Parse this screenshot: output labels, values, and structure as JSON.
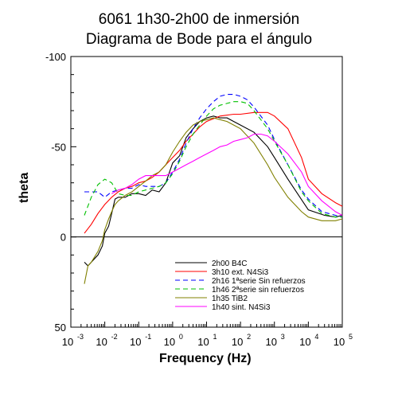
{
  "chart_data": {
    "type": "line",
    "title_lines": [
      "6061 1h30-2h00 de inmersión",
      "Diagrama de Bode para el ángulo"
    ],
    "xlabel": "Frequency (Hz)",
    "ylabel": "theta",
    "x_scale": "log",
    "xlim": [
      0.001,
      100000
    ],
    "ylim": [
      50,
      -100
    ],
    "y_inverted": true,
    "y_ticks": [
      -100,
      -50,
      0,
      50
    ],
    "x_ticks": [
      {
        "base": "10",
        "exp": "-3",
        "value": 0.001
      },
      {
        "base": "10",
        "exp": "-2",
        "value": 0.01
      },
      {
        "base": "10",
        "exp": "-1",
        "value": 0.1
      },
      {
        "base": "10",
        "exp": "0",
        "value": 1
      },
      {
        "base": "10",
        "exp": "1",
        "value": 10
      },
      {
        "base": "10",
        "exp": "2",
        "value": 100
      },
      {
        "base": "10",
        "exp": "3",
        "value": 1000
      },
      {
        "base": "10",
        "exp": "4",
        "value": 10000
      },
      {
        "base": "10",
        "exp": "5",
        "value": 100000
      }
    ],
    "zero_line": true,
    "grid": false,
    "legend_position": "bottom-right",
    "series": [
      {
        "name": "2h00 B4C",
        "color": "#000000",
        "dash": "solid",
        "x": [
          0.0025,
          0.0032,
          0.004,
          0.0063,
          0.0085,
          0.01,
          0.013,
          0.016,
          0.02,
          0.025,
          0.04,
          0.063,
          0.1,
          0.16,
          0.25,
          0.4,
          0.63,
          1,
          1.6,
          2.5,
          4,
          6.3,
          10,
          16,
          25,
          40,
          63,
          100,
          250,
          630,
          1000,
          2500,
          10000,
          30000,
          63000,
          100000
        ],
        "y": [
          14,
          16,
          14,
          10,
          5,
          -2,
          -6,
          -13,
          -21,
          -22,
          -22,
          -24,
          -24,
          -23,
          -26,
          -25,
          -30,
          -41,
          -45,
          -55,
          -60,
          -64,
          -66,
          -67,
          -66,
          -66,
          -64,
          -62,
          -58,
          -50,
          -44,
          -32,
          -15,
          -12,
          -11,
          -12
        ]
      },
      {
        "name": "3h10 ext. N4Si3",
        "color": "#ff0000",
        "dash": "solid",
        "x": [
          0.0025,
          0.004,
          0.0063,
          0.01,
          0.016,
          0.025,
          0.04,
          0.063,
          0.1,
          0.16,
          0.25,
          0.4,
          0.63,
          1,
          1.6,
          2.5,
          4,
          6.3,
          10,
          25,
          63,
          100,
          250,
          630,
          1000,
          2500,
          6300,
          10000,
          25000,
          63000,
          100000
        ],
        "y": [
          -2,
          -7,
          -13,
          -18,
          -22,
          -25,
          -27,
          -28,
          -30,
          -31,
          -33,
          -36,
          -40,
          -44,
          -48,
          -53,
          -57,
          -61,
          -64,
          -67,
          -68,
          -68,
          -69,
          -69,
          -67,
          -60,
          -44,
          -32,
          -24,
          -19,
          -17
        ]
      },
      {
        "name": "2h16 1ªserie Sin refuerzos",
        "color": "#0000ff",
        "dash": "6,4",
        "x": [
          0.0025,
          0.004,
          0.0063,
          0.01,
          0.016,
          0.025,
          0.04,
          0.063,
          0.1,
          0.16,
          0.25,
          0.4,
          0.63,
          1,
          1.6,
          2.5,
          4,
          6.3,
          10,
          16,
          25,
          40,
          63,
          100,
          160,
          250,
          630,
          1000,
          2500,
          6300,
          10000,
          25000,
          63000,
          100000
        ],
        "y": [
          -25,
          -25,
          -25,
          -22,
          -25,
          -26,
          -27,
          -27,
          -29,
          -28,
          -28,
          -28,
          -30,
          -36,
          -43,
          -52,
          -60,
          -66,
          -71,
          -75,
          -78,
          -79,
          -79,
          -78,
          -76,
          -72,
          -62,
          -54,
          -40,
          -26,
          -21,
          -14,
          -12,
          -11
        ]
      },
      {
        "name": "1h46 2ªserie sin refuerzos",
        "color": "#00c000",
        "dash": "6,4",
        "x": [
          0.0025,
          0.004,
          0.0063,
          0.01,
          0.016,
          0.025,
          0.04,
          0.063,
          0.1,
          0.16,
          0.25,
          0.4,
          0.63,
          1,
          1.6,
          2.5,
          4,
          6.3,
          10,
          16,
          25,
          40,
          63,
          100,
          160,
          250,
          630,
          1000,
          2500,
          6300,
          10000,
          25000,
          63000,
          100000
        ],
        "y": [
          -12,
          -22,
          -29,
          -32,
          -30,
          -24,
          -23,
          -23,
          -25,
          -26,
          -27,
          -28,
          -30,
          -35,
          -42,
          -50,
          -57,
          -62,
          -67,
          -71,
          -73,
          -74,
          -75,
          -75,
          -74,
          -70,
          -60,
          -53,
          -40,
          -25,
          -20,
          -13,
          -11,
          -11
        ]
      },
      {
        "name": "1h35 TiB2",
        "color": "#808000",
        "dash": "solid",
        "x": [
          0.0025,
          0.0032,
          0.004,
          0.0063,
          0.0085,
          0.01,
          0.013,
          0.016,
          0.02,
          0.025,
          0.04,
          0.063,
          0.1,
          0.16,
          0.25,
          0.4,
          0.63,
          1,
          1.6,
          2.5,
          4,
          6.3,
          10,
          16,
          25,
          40,
          63,
          100,
          250,
          630,
          1000,
          2500,
          6300,
          10000,
          25000,
          63000,
          100000
        ],
        "y": [
          26,
          16,
          14,
          8,
          2,
          -4,
          -10,
          -14,
          -18,
          -20,
          -23,
          -25,
          -28,
          -31,
          -34,
          -36,
          -40,
          -47,
          -53,
          -58,
          -62,
          -64,
          -65,
          -66,
          -65,
          -64,
          -62,
          -60,
          -52,
          -40,
          -33,
          -22,
          -14,
          -11,
          -9,
          -9,
          -10
        ]
      },
      {
        "name": "1h40 sint. N4Si3",
        "color": "#ff00ff",
        "dash": "solid",
        "x": [
          0.016,
          0.025,
          0.04,
          0.063,
          0.1,
          0.16,
          0.25,
          0.4,
          0.63,
          1,
          1.6,
          2.5,
          4,
          6.3,
          10,
          16,
          25,
          40,
          63,
          100,
          160,
          250,
          400,
          630,
          1000,
          2500,
          6300,
          10000,
          25000,
          63000,
          100000
        ],
        "y": [
          -24,
          -26,
          -27,
          -29,
          -32,
          -34,
          -34,
          -34,
          -34,
          -36,
          -38,
          -40,
          -42,
          -44,
          -46,
          -48,
          -50,
          -51,
          -53,
          -54,
          -55,
          -57,
          -57,
          -56,
          -53,
          -46,
          -36,
          -28,
          -20,
          -14,
          -12
        ]
      }
    ]
  }
}
